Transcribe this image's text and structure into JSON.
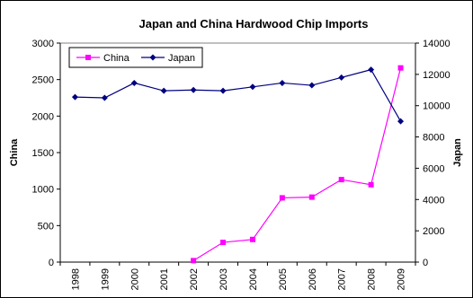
{
  "chart_data": {
    "type": "line",
    "title": "Japan and China Hardwood Chip Imports",
    "xlabel": "",
    "ylabel_left": "China",
    "ylabel_right": "Japan",
    "categories": [
      "1998",
      "1999",
      "2000",
      "2001",
      "2002",
      "2003",
      "2004",
      "2005",
      "2006",
      "2007",
      "2008",
      "2009"
    ],
    "y_left": {
      "min": 0,
      "max": 3000,
      "ticks": [
        0,
        500,
        1000,
        1500,
        2000,
        2500,
        3000
      ]
    },
    "y_right": {
      "min": 0,
      "max": 14000,
      "ticks": [
        0,
        2000,
        4000,
        6000,
        8000,
        10000,
        12000,
        14000
      ]
    },
    "grid": false,
    "legend_placement": "top-left",
    "series": [
      {
        "name": "China",
        "axis": "left",
        "color": "#ff00ff",
        "marker": "square",
        "values": [
          null,
          null,
          null,
          null,
          20,
          270,
          310,
          880,
          890,
          1130,
          1060,
          2660
        ]
      },
      {
        "name": "Japan",
        "axis": "right",
        "color": "#000080",
        "marker": "diamond",
        "values": [
          10550,
          10500,
          11450,
          10950,
          11000,
          10950,
          11200,
          11450,
          11300,
          11800,
          12300,
          9000
        ]
      }
    ]
  }
}
